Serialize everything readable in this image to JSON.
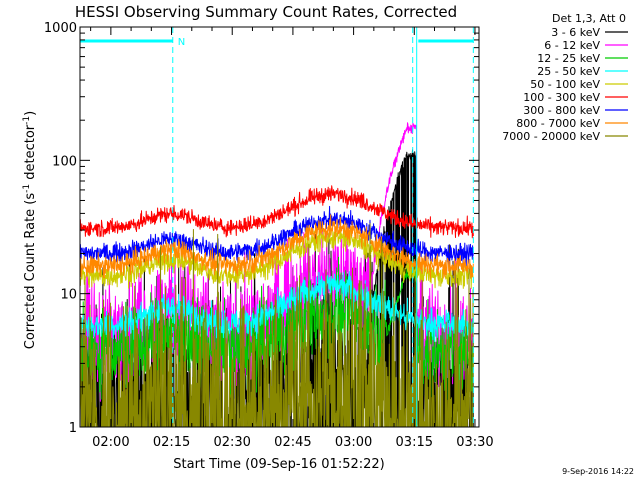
{
  "chart_data": {
    "type": "line",
    "title": "HESSI Observing Summary Count Rates, Corrected",
    "xlabel": "Start Time (09-Sep-16 01:52:22)",
    "ylabel_main": "Corrected Count Rate (s",
    "ylabel_sup1": "-1",
    "ylabel_mid": " detector",
    "ylabel_sup2": "-1",
    "ylabel_end": ")",
    "yscale": "log",
    "ylim": [
      1,
      1000
    ],
    "xlim_minutes": [
      112.37,
      211.0
    ],
    "x_ticks": [
      {
        "minute": 120,
        "label": "02:00"
      },
      {
        "minute": 135,
        "label": "02:15"
      },
      {
        "minute": 150,
        "label": "02:30"
      },
      {
        "minute": 165,
        "label": "02:45"
      },
      {
        "minute": 180,
        "label": "03:00"
      },
      {
        "minute": 195,
        "label": "03:15"
      },
      {
        "minute": 210,
        "label": "03:30"
      }
    ],
    "y_ticks": [
      {
        "value": 1,
        "label": "1"
      },
      {
        "value": 10,
        "label": "10"
      },
      {
        "value": 100,
        "label": "100"
      },
      {
        "value": 1000,
        "label": "1000"
      }
    ],
    "legend_header": "Det 1,3, Att 0",
    "series": [
      {
        "name": "3 - 6 keV",
        "color": "#000000",
        "base": 2.0,
        "hump": 1.8,
        "noise": 0.9,
        "flare": 110
      },
      {
        "name": "6 - 12 keV",
        "color": "#ff00ff",
        "base": 4.8,
        "hump": 2.8,
        "noise": 0.45,
        "flare": 175
      },
      {
        "name": "12 - 25 keV",
        "color": "#00cc00",
        "base": 3.6,
        "hump": 2.0,
        "noise": 0.35,
        "flare": 14
      },
      {
        "name": "25 - 50 keV",
        "color": "#00ffff",
        "base": 5.8,
        "hump": 2.0,
        "noise": 0.12,
        "flare": 0
      },
      {
        "name": "50 - 100 keV",
        "color": "#cccc00",
        "base": 13.5,
        "hump": 1.95,
        "noise": 0.1,
        "flare": 0
      },
      {
        "name": "100 - 300 keV",
        "color": "#ff0000",
        "base": 31,
        "hump": 1.8,
        "noise": 0.07,
        "flare": 0
      },
      {
        "name": "300 - 800 keV",
        "color": "#0000ff",
        "base": 20,
        "hump": 1.8,
        "noise": 0.08,
        "flare": 0
      },
      {
        "name": "800 - 7000 keV",
        "color": "#ff8800",
        "base": 16,
        "hump": 1.95,
        "noise": 0.09,
        "flare": 0
      },
      {
        "name": "7000 - 20000 keV",
        "color": "#888800",
        "base": 1.6,
        "hump": 1.6,
        "noise": 1.0,
        "flare": 0
      }
    ],
    "annotations": {
      "night_label": "N",
      "night_bars": [
        [
          112.37,
          135.3
        ],
        [
          196.0,
          209.6
        ]
      ],
      "night_markers_dashed": [
        135.3,
        209.6
      ],
      "saa_lines_solid": [
        112.37,
        195.6
      ],
      "attenuator_dashed": [
        195.6
      ]
    },
    "footer_date": "9-Sep-2016 14:22"
  }
}
